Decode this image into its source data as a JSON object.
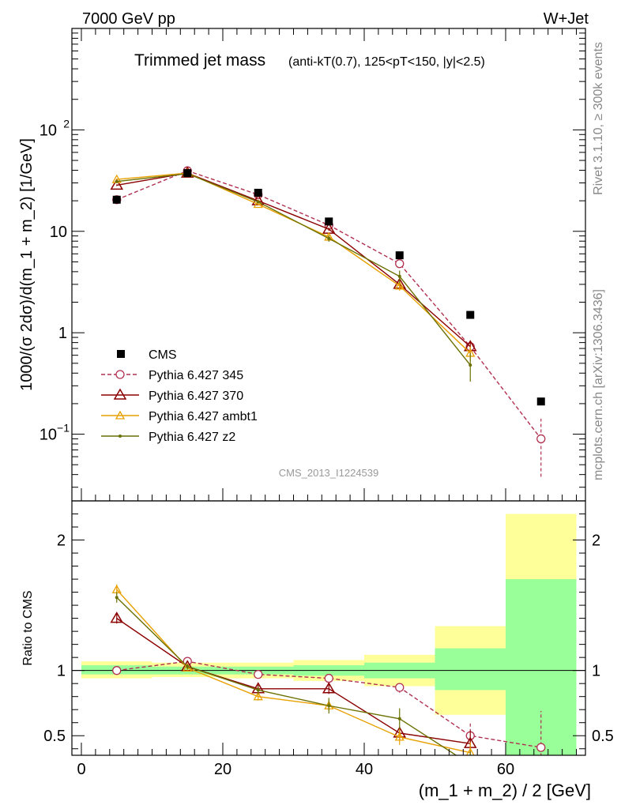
{
  "header": {
    "energy": "7000 GeV pp",
    "process": "W+Jet"
  },
  "side_text": {
    "rivet": "Rivet 3.1.10, ≥ 300k events",
    "source": "mcplots.cern.ch [arXiv:1306.3436]"
  },
  "chart_data": [
    {
      "type": "line",
      "title": "Trimmed jet mass",
      "title_detail": "(anti-kT(0.7), 125<pT<150, |y|<2.5)",
      "analysis_id": "CMS_2013_I1224539",
      "ylabel": "1000/(σ 2dσ)/d(m_1 + m_2) [1/GeV]",
      "yscale": "log",
      "ylim": [
        0.022,
        1000
      ],
      "xlim": [
        -2,
        72
      ],
      "grid": false,
      "legend_position": "lower-left",
      "x": [
        5,
        15,
        25,
        35,
        45,
        55,
        65
      ],
      "reference": {
        "name": "CMS",
        "color": "#000000",
        "values": [
          20.5,
          37.5,
          24.0,
          12.5,
          5.8,
          1.5,
          0.21
        ]
      },
      "series": [
        {
          "name": "Pythia 6.427 345",
          "color": "#b03050",
          "marker": "circle",
          "dashed": true,
          "values": [
            20.5,
            39.5,
            23.0,
            11.5,
            4.8,
            0.73,
            0.09
          ],
          "errors": [
            0.5,
            0.5,
            0.5,
            0.4,
            0.3,
            0.13,
            0.052
          ]
        },
        {
          "name": "Pythia 6.427 370",
          "color": "#8b0000",
          "marker": "triangle",
          "dashed": false,
          "values": [
            28.5,
            37.5,
            20.0,
            10.5,
            3.0,
            0.73,
            null
          ],
          "errors": [
            0.5,
            0.5,
            0.5,
            0.4,
            0.3,
            0.1,
            null
          ]
        },
        {
          "name": "Pythia 6.427 ambt1",
          "color": "#e8a000",
          "marker": "triangle-small",
          "dashed": false,
          "values": [
            32.5,
            37.5,
            18.5,
            8.8,
            2.9,
            0.63,
            null
          ],
          "errors": [
            0.5,
            0.5,
            0.5,
            0.4,
            0.3,
            0.1,
            null
          ]
        },
        {
          "name": "Pythia 6.427 z2",
          "color": "#6b7000",
          "marker": "dot",
          "dashed": false,
          "values": [
            31.0,
            37.0,
            19.5,
            8.5,
            3.6,
            0.48,
            null
          ],
          "errors": [
            0.5,
            0.5,
            0.5,
            0.6,
            0.5,
            0.15,
            null
          ]
        }
      ],
      "x_ticks": []
    },
    {
      "type": "line",
      "ylabel": "Ratio to CMS",
      "xlabel": "(m_1 + m_2) / 2 [GeV]",
      "ylim": [
        0.35,
        2.3
      ],
      "xlim": [
        -2,
        72
      ],
      "x_ticks": [
        0,
        20,
        40,
        60
      ],
      "y_ticks": [
        0.5,
        1,
        2
      ],
      "bands": [
        {
          "x": [
            0,
            10
          ],
          "green": [
            0.97,
            1.04
          ],
          "yellow": [
            0.94,
            1.07
          ]
        },
        {
          "x": [
            10,
            20
          ],
          "green": [
            0.97,
            1.03
          ],
          "yellow": [
            0.95,
            1.06
          ]
        },
        {
          "x": [
            20,
            30
          ],
          "green": [
            0.97,
            1.03
          ],
          "yellow": [
            0.94,
            1.06
          ]
        },
        {
          "x": [
            30,
            40
          ],
          "green": [
            0.96,
            1.04
          ],
          "yellow": [
            0.92,
            1.08
          ]
        },
        {
          "x": [
            40,
            50
          ],
          "green": [
            0.94,
            1.06
          ],
          "yellow": [
            0.88,
            1.12
          ]
        },
        {
          "x": [
            50,
            60
          ],
          "green": [
            0.85,
            1.17
          ],
          "yellow": [
            0.66,
            1.34
          ]
        },
        {
          "x": [
            60,
            70
          ],
          "green": [
            0.35,
            1.7
          ],
          "yellow": [
            0.35,
            2.2
          ]
        }
      ],
      "series": [
        {
          "name": "Pythia 6.427 345",
          "values": [
            1.0,
            1.07,
            0.97,
            0.94,
            0.87,
            0.5,
            0.41
          ],
          "errors": [
            0.03,
            0.02,
            0.02,
            0.03,
            0.04,
            0.1,
            0.28
          ]
        },
        {
          "name": "Pythia 6.427 370",
          "values": [
            1.4,
            1.03,
            0.86,
            0.86,
            0.52,
            0.44,
            null
          ],
          "errors": [
            0.04,
            0.02,
            0.03,
            0.04,
            0.05,
            0.1,
            null
          ]
        },
        {
          "name": "Pythia 6.427 ambt1",
          "values": [
            1.62,
            1.02,
            0.8,
            0.73,
            0.49,
            0.37,
            null
          ],
          "errors": [
            0.04,
            0.02,
            0.03,
            0.04,
            0.06,
            0.08,
            null
          ]
        },
        {
          "name": "Pythia 6.427 z2",
          "values": [
            1.56,
            1.03,
            0.85,
            0.73,
            0.63,
            0.28,
            null
          ],
          "errors": [
            0.04,
            0.02,
            0.03,
            0.06,
            0.08,
            0.1,
            null
          ]
        }
      ]
    }
  ]
}
